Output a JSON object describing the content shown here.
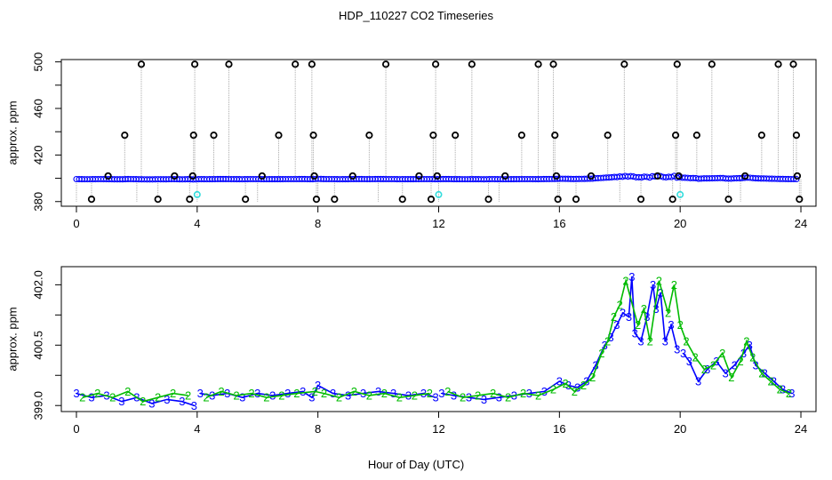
{
  "title": "HDP_110227  CO2 Timeseries",
  "xlabel": "Hour of Day (UTC)",
  "colors": {
    "frame": "#000000",
    "blue": "#0000ff",
    "green": "#00bb00",
    "cyan": "#33dddd",
    "gray": "#aaaaaa"
  },
  "chart_data": [
    {
      "type": "scatter",
      "ylabel": "approx. ppm",
      "xlim": [
        -0.5,
        24.5
      ],
      "ylim": [
        376,
        502
      ],
      "xticks": [
        0,
        4,
        8,
        12,
        16,
        20,
        24
      ],
      "xtick_labels": [
        "0",
        "4",
        "8",
        "12",
        "16",
        "20",
        "24"
      ],
      "yticks": [
        380,
        420,
        460,
        500
      ],
      "ytick_labels": [
        "380",
        "420",
        "460",
        "500"
      ],
      "series": [
        {
          "style": "black-open-circles",
          "points": [
            [
              0.5,
              382
            ],
            [
              1.05,
              402
            ],
            [
              1.6,
              437
            ],
            [
              2.15,
              498
            ],
            [
              2.7,
              382
            ],
            [
              3.25,
              402
            ],
            [
              3.75,
              382
            ],
            [
              3.85,
              402
            ],
            [
              3.88,
              437
            ],
            [
              3.92,
              498
            ],
            [
              4.55,
              437
            ],
            [
              5.05,
              498
            ],
            [
              5.6,
              382
            ],
            [
              6.15,
              402
            ],
            [
              6.7,
              437
            ],
            [
              7.25,
              498
            ],
            [
              7.8,
              498
            ],
            [
              7.85,
              437
            ],
            [
              7.88,
              402
            ],
            [
              7.95,
              382
            ],
            [
              8.55,
              382
            ],
            [
              9.15,
              402
            ],
            [
              9.7,
              437
            ],
            [
              10.25,
              498
            ],
            [
              10.8,
              382
            ],
            [
              11.35,
              402
            ],
            [
              11.75,
              382
            ],
            [
              11.82,
              437
            ],
            [
              11.9,
              498
            ],
            [
              11.95,
              402
            ],
            [
              12.55,
              437
            ],
            [
              13.1,
              498
            ],
            [
              13.65,
              382
            ],
            [
              14.2,
              402
            ],
            [
              14.75,
              437
            ],
            [
              15.3,
              498
            ],
            [
              15.8,
              498
            ],
            [
              15.85,
              437
            ],
            [
              15.9,
              402
            ],
            [
              15.95,
              382
            ],
            [
              16.55,
              382
            ],
            [
              17.05,
              402
            ],
            [
              17.6,
              437
            ],
            [
              18.15,
              498
            ],
            [
              18.7,
              382
            ],
            [
              19.25,
              402
            ],
            [
              19.75,
              382
            ],
            [
              19.85,
              437
            ],
            [
              19.9,
              498
            ],
            [
              19.95,
              402
            ],
            [
              20.55,
              437
            ],
            [
              21.05,
              498
            ],
            [
              21.6,
              382
            ],
            [
              22.15,
              402
            ],
            [
              22.7,
              437
            ],
            [
              23.25,
              498
            ],
            [
              23.75,
              498
            ],
            [
              23.85,
              437
            ],
            [
              23.88,
              402
            ],
            [
              23.95,
              382
            ]
          ]
        },
        {
          "style": "cyan-circles",
          "points": [
            [
              4.0,
              386
            ],
            [
              12.0,
              386
            ],
            [
              20.0,
              386
            ]
          ]
        }
      ]
    },
    {
      "type": "line",
      "ylabel": "approx. ppm",
      "xlim": [
        -0.5,
        24.5
      ],
      "ylim": [
        398.85,
        402.45
      ],
      "xticks": [
        0,
        4,
        8,
        12,
        16,
        20,
        24
      ],
      "xtick_labels": [
        "0",
        "4",
        "8",
        "12",
        "16",
        "20",
        "24"
      ],
      "yticks": [
        399.0,
        400.5,
        402.0
      ],
      "ytick_labels": [
        "399.0",
        "400.5",
        "402.0"
      ],
      "gaps": [
        4.0,
        12.0,
        20.0
      ],
      "series": [
        {
          "symbol": "3",
          "color": "blue",
          "x": [
            0,
            0.5,
            1,
            1.5,
            2,
            2.5,
            3,
            3.5,
            3.9,
            4.1,
            4.5,
            5,
            5.5,
            6,
            6.5,
            7,
            7.5,
            7.8,
            8,
            8.5,
            9,
            9.5,
            10,
            10.5,
            11,
            11.5,
            11.9,
            12.1,
            12.5,
            13,
            13.5,
            14,
            14.5,
            15,
            15.5,
            16,
            16.3,
            16.6,
            16.9,
            17.2,
            17.5,
            17.7,
            17.9,
            18.1,
            18.3,
            18.4,
            18.5,
            18.7,
            18.9,
            19.1,
            19.2,
            19.35,
            19.5,
            19.7,
            19.9,
            20.1,
            20.3,
            20.6,
            20.9,
            21.2,
            21.5,
            21.8,
            22.1,
            22.3,
            22.5,
            22.8,
            23.1,
            23.4,
            23.7
          ],
          "y": [
            399.3,
            399.2,
            399.25,
            399.1,
            399.2,
            399.05,
            399.15,
            399.1,
            399.0,
            399.3,
            399.25,
            399.3,
            399.2,
            399.3,
            399.25,
            399.3,
            399.35,
            399.2,
            399.5,
            399.3,
            399.25,
            399.3,
            399.35,
            399.3,
            399.25,
            399.3,
            399.2,
            399.3,
            399.25,
            399.2,
            399.15,
            399.2,
            399.25,
            399.3,
            399.35,
            399.6,
            399.5,
            399.45,
            399.6,
            400.0,
            400.5,
            400.7,
            401.0,
            401.3,
            401.2,
            402.2,
            400.8,
            400.6,
            401.2,
            402.0,
            401.4,
            401.8,
            400.6,
            401.0,
            400.4,
            400.3,
            400.1,
            399.6,
            399.9,
            400.1,
            399.8,
            400.0,
            400.3,
            400.5,
            400.0,
            399.8,
            399.6,
            399.4,
            399.3
          ]
        },
        {
          "symbol": "2",
          "color": "green",
          "x": [
            0.2,
            0.7,
            1.2,
            1.7,
            2.2,
            2.7,
            3.2,
            3.7,
            4.3,
            4.8,
            5.3,
            5.8,
            6.3,
            6.8,
            7.3,
            7.9,
            8.2,
            8.7,
            9.2,
            9.7,
            10.2,
            10.7,
            11.2,
            11.7,
            12.3,
            12.8,
            13.3,
            13.8,
            14.3,
            14.8,
            15.3,
            15.8,
            16.2,
            16.5,
            16.8,
            17.1,
            17.4,
            17.6,
            17.8,
            18.0,
            18.2,
            18.6,
            18.8,
            19.0,
            19.3,
            19.6,
            19.8,
            20.0,
            20.2,
            20.5,
            20.8,
            21.1,
            21.4,
            21.7,
            22.0,
            22.2,
            22.4,
            22.7,
            23.0,
            23.3,
            23.6
          ],
          "y": [
            399.2,
            399.3,
            399.2,
            399.35,
            399.1,
            399.2,
            399.3,
            399.25,
            399.2,
            399.35,
            399.25,
            399.3,
            399.2,
            399.25,
            399.3,
            399.35,
            399.3,
            399.2,
            399.35,
            399.25,
            399.3,
            399.2,
            399.25,
            399.3,
            399.35,
            399.2,
            399.25,
            399.3,
            399.2,
            399.3,
            399.25,
            399.4,
            399.55,
            399.35,
            399.5,
            399.7,
            400.3,
            400.6,
            401.2,
            401.5,
            402.1,
            401.0,
            401.4,
            400.6,
            402.1,
            401.3,
            402.0,
            401.0,
            400.6,
            400.2,
            399.9,
            400.0,
            400.3,
            399.7,
            400.1,
            400.6,
            400.2,
            399.8,
            399.6,
            399.4,
            399.3
          ]
        }
      ]
    }
  ]
}
